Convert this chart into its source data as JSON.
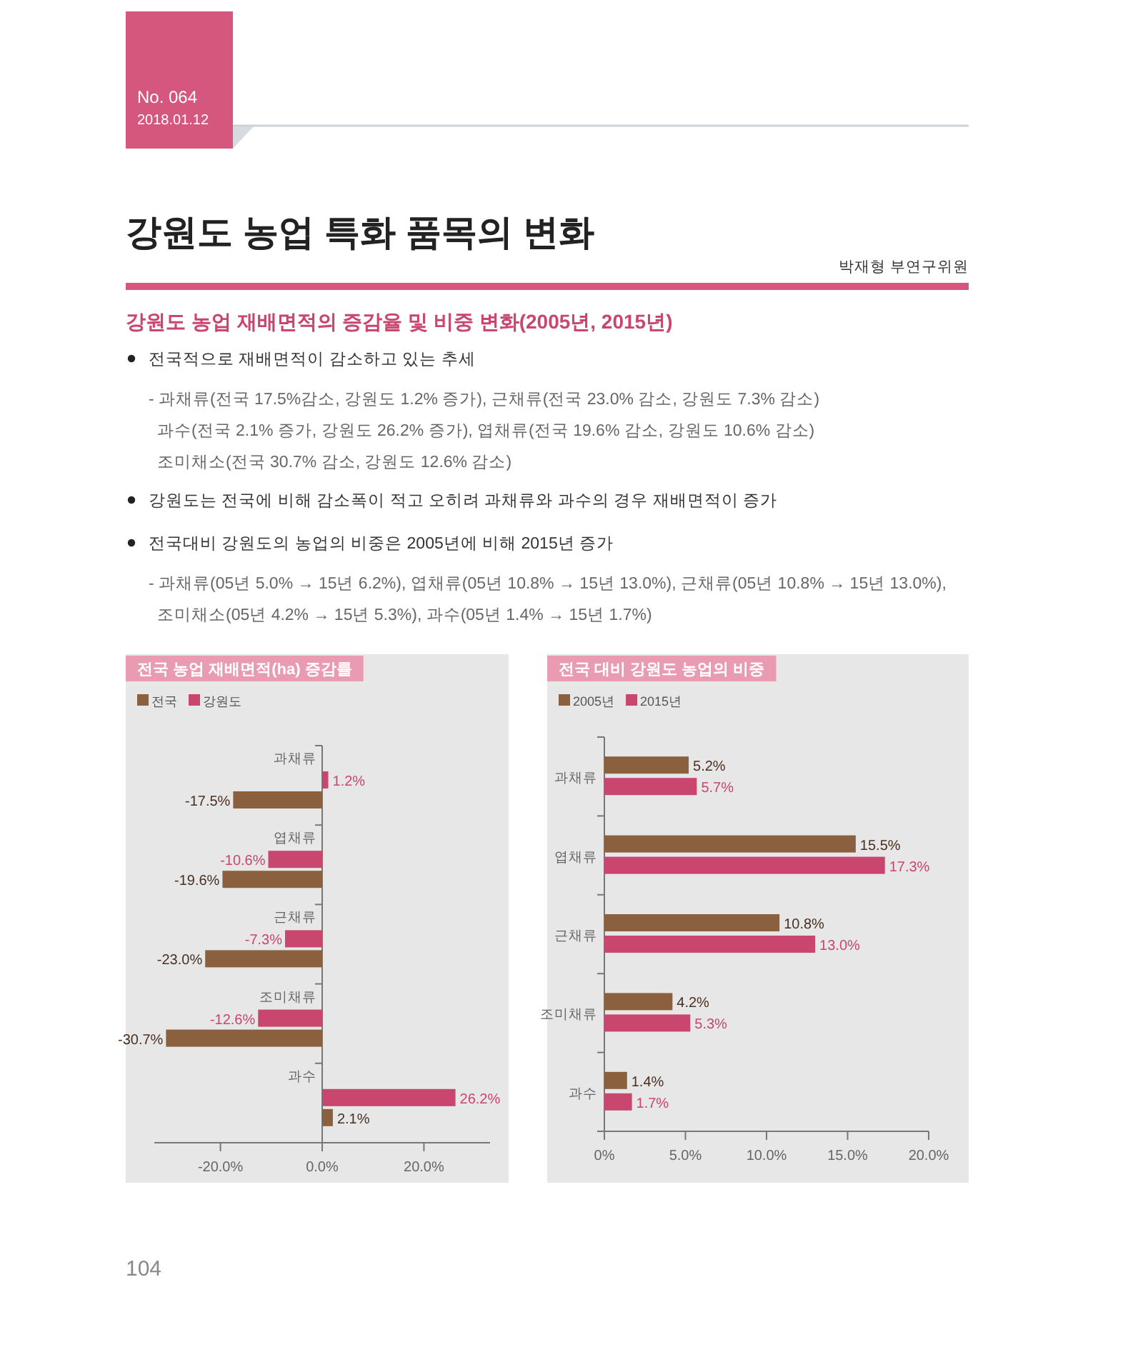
{
  "chart_data": [
    {
      "type": "bar",
      "orientation": "horizontal",
      "title": "전국 농업 재배면적(ha) 증감률",
      "categories": [
        "과채류",
        "엽채류",
        "근채류",
        "조미채류",
        "과수"
      ],
      "series": [
        {
          "name": "전국",
          "color": "#8a603f",
          "values": [
            -17.5,
            -19.6,
            -23.0,
            -30.7,
            2.1
          ],
          "value_labels": [
            "-17.5%",
            "-19.6%",
            "-23.0%",
            "-30.7%",
            "2.1%"
          ]
        },
        {
          "name": "강원도",
          "color": "#c9466f",
          "values": [
            1.2,
            -10.6,
            -7.3,
            -12.6,
            26.2
          ],
          "value_labels": [
            "1.2%",
            "-10.6%",
            "-7.3%",
            "-12.6%",
            "26.2%"
          ]
        }
      ],
      "xlim": [
        -33,
        33
      ],
      "xticks": [
        {
          "value": -20,
          "label": "-20.0%"
        },
        {
          "value": 0,
          "label": "0.0%"
        },
        {
          "value": 20,
          "label": "20.0%"
        }
      ],
      "legend": "top left",
      "annotations": [
        "No. 064",
        "2018.01.12",
        "강원도 농업 특화 품목의 변화",
        "박재형 부연구위원",
        "강원도 농업 재배면적의 증감율 및 비중 변화(2005년, 2015년)",
        "전국적으로 재배면적이 감소하고 있는 추세",
        "- 과채류(전국 17.5%감소, 강원도 1.2% 증가), 근채류(전국 23.0% 감소, 강원도 7.3% 감소)",
        "과수(전국 2.1% 증가, 강원도 26.2% 증가), 엽채류(전국 19.6% 감소, 강원도 10.6% 감소)",
        "조미채소(전국 30.7% 감소, 강원도 12.6% 감소)",
        "강원도는 전국에 비해 감소폭이 적고 오히려 과채류와 과수의 경우 재배면적이 증가",
        "전국대비 강원도의 농업의 비중은 2005년에 비해 2015년 증가",
        "- 과채류(05년 5.0% → 15년 6.2%), 엽채류(05년 10.8% → 15년 13.0%), 근채류(05년 10.8% → 15년 13.0%),",
        "조미채소(05년 4.2% → 15년 5.3%), 과수(05년 1.4% → 15년 1.7%)",
        "104"
      ]
    },
    {
      "type": "bar",
      "orientation": "horizontal",
      "title": "전국 대비 강원도 농업의 비중",
      "categories": [
        "과채류",
        "엽채류",
        "근채류",
        "조미채류",
        "과수"
      ],
      "series": [
        {
          "name": "2005년",
          "color": "#8a603f",
          "values": [
            5.2,
            15.5,
            10.8,
            4.2,
            1.4
          ],
          "value_labels": [
            "5.2%",
            "15.5%",
            "10.8%",
            "4.2%",
            "1.4%"
          ]
        },
        {
          "name": "2015년",
          "color": "#c9466f",
          "values": [
            5.7,
            17.3,
            13.0,
            5.3,
            1.7
          ],
          "value_labels": [
            "5.7%",
            "17.3%",
            "13.0%",
            "5.3%",
            "1.7%"
          ]
        }
      ],
      "xlim": [
        0,
        20
      ],
      "xticks": [
        {
          "value": 0,
          "label": "0%"
        },
        {
          "value": 5,
          "label": "5.0%"
        },
        {
          "value": 10,
          "label": "10.0%"
        },
        {
          "value": 15,
          "label": "15.0%"
        },
        {
          "value": 20,
          "label": "20.0%"
        }
      ],
      "legend": "top left"
    }
  ]
}
